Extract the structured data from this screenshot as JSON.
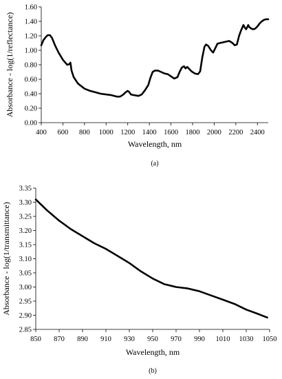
{
  "chart_data": [
    {
      "type": "line",
      "panel_label": "(a)",
      "xlabel": "Wavelength, nm",
      "ylabel": "Absorbance - log(1/reflectance)",
      "xlim": [
        400,
        2500
      ],
      "ylim": [
        0,
        1.6
      ],
      "x_ticks": [
        400,
        600,
        800,
        1000,
        1200,
        1400,
        1600,
        1800,
        2000,
        2200,
        2400
      ],
      "y_ticks": [
        0.0,
        0.2,
        0.4,
        0.6,
        0.8,
        1.0,
        1.2,
        1.4,
        1.6
      ],
      "x_tick_labels": [
        "400",
        "600",
        "800",
        "1000",
        "1200",
        "1400",
        "1600",
        "1800",
        "2000",
        "2200",
        "2400"
      ],
      "y_tick_labels": [
        "0.00",
        "0.20",
        "0.40",
        "0.60",
        "0.80",
        "1.00",
        "1.20",
        "1.40",
        "1.60"
      ],
      "grid": false,
      "series": [
        {
          "x": [
            400,
            420,
            440,
            460,
            480,
            500,
            530,
            560,
            600,
            640,
            660,
            670,
            680,
            700,
            740,
            800,
            850,
            900,
            950,
            1000,
            1050,
            1100,
            1130,
            1160,
            1180,
            1200,
            1215,
            1230,
            1260,
            1300,
            1330,
            1360,
            1390,
            1410,
            1430,
            1450,
            1480,
            1510,
            1540,
            1570,
            1600,
            1630,
            1660,
            1680,
            1700,
            1720,
            1735,
            1750,
            1770,
            1790,
            1820,
            1850,
            1870,
            1890,
            1910,
            1925,
            1945,
            1970,
            1990,
            2010,
            2030,
            2050,
            2080,
            2110,
            2140,
            2170,
            2190,
            2210,
            2230,
            2250,
            2270,
            2285,
            2295,
            2305,
            2315,
            2325,
            2345,
            2360,
            2380,
            2400,
            2420,
            2440,
            2460,
            2480,
            2500
          ],
          "y": [
            1.07,
            1.14,
            1.18,
            1.21,
            1.21,
            1.17,
            1.06,
            0.97,
            0.87,
            0.8,
            0.81,
            0.83,
            0.72,
            0.63,
            0.54,
            0.47,
            0.44,
            0.42,
            0.4,
            0.39,
            0.38,
            0.36,
            0.36,
            0.39,
            0.42,
            0.44,
            0.42,
            0.39,
            0.38,
            0.37,
            0.39,
            0.45,
            0.52,
            0.62,
            0.7,
            0.72,
            0.72,
            0.7,
            0.68,
            0.67,
            0.64,
            0.61,
            0.63,
            0.7,
            0.76,
            0.78,
            0.75,
            0.77,
            0.74,
            0.71,
            0.68,
            0.67,
            0.71,
            0.9,
            1.05,
            1.08,
            1.06,
            1.0,
            0.97,
            1.03,
            1.09,
            1.1,
            1.11,
            1.12,
            1.13,
            1.1,
            1.07,
            1.08,
            1.2,
            1.28,
            1.35,
            1.31,
            1.29,
            1.32,
            1.35,
            1.32,
            1.3,
            1.29,
            1.3,
            1.33,
            1.37,
            1.4,
            1.42,
            1.43,
            1.43
          ]
        }
      ]
    },
    {
      "type": "line",
      "panel_label": "(b)",
      "xlabel": "Wavelength, nm",
      "ylabel": "Absorbance - log(1/transmittance)",
      "xlim": [
        850,
        1050
      ],
      "ylim": [
        2.85,
        3.35
      ],
      "x_ticks": [
        850,
        870,
        890,
        910,
        930,
        950,
        970,
        990,
        1010,
        1030,
        1050
      ],
      "y_ticks": [
        2.85,
        2.9,
        2.95,
        3.0,
        3.05,
        3.1,
        3.15,
        3.2,
        3.25,
        3.3,
        3.35
      ],
      "x_tick_labels": [
        "850",
        "870",
        "890",
        "910",
        "930",
        "950",
        "970",
        "990",
        "1010",
        "1030",
        "1050"
      ],
      "y_tick_labels": [
        "2.85",
        "2.90",
        "2.95",
        "3.00",
        "3.05",
        "3.10",
        "3.15",
        "3.20",
        "3.25",
        "3.30",
        "3.35"
      ],
      "grid": false,
      "series": [
        {
          "x": [
            850,
            860,
            870,
            880,
            890,
            900,
            910,
            920,
            930,
            940,
            950,
            960,
            970,
            980,
            990,
            1000,
            1010,
            1020,
            1030,
            1040,
            1048
          ],
          "y": [
            3.31,
            3.27,
            3.235,
            3.205,
            3.18,
            3.155,
            3.135,
            3.11,
            3.085,
            3.055,
            3.03,
            3.01,
            3.0,
            2.995,
            2.985,
            2.97,
            2.955,
            2.94,
            2.92,
            2.905,
            2.892
          ]
        }
      ]
    }
  ]
}
